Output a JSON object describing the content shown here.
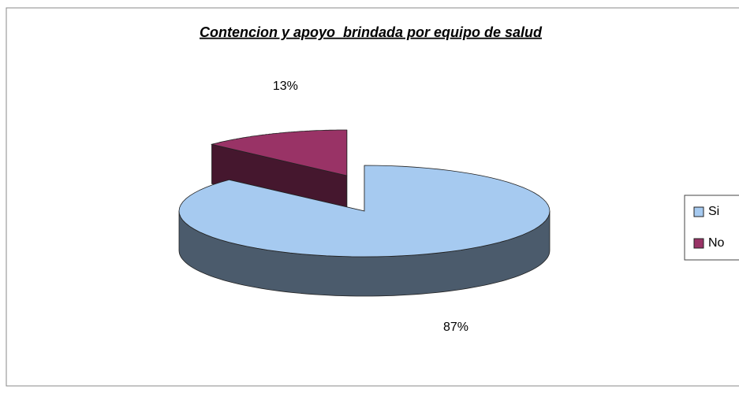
{
  "chart_data": {
    "type": "pie",
    "title": "Contencion y apoyo  brindada por equipo de salud",
    "categories": [
      "Si",
      "No"
    ],
    "values": [
      87,
      13
    ],
    "value_labels": [
      "87%",
      "13%"
    ],
    "colors": [
      "#a6caf0",
      "#993366"
    ],
    "legend": "right"
  }
}
